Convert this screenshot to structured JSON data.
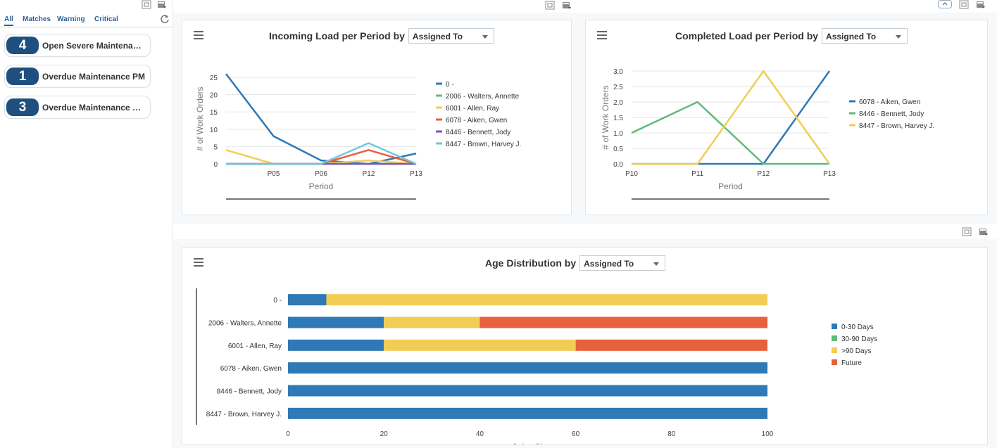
{
  "sidebar": {
    "tabs": [
      "All",
      "Matches",
      "Warning",
      "Critical"
    ],
    "watchlists": [
      {
        "count": "4",
        "label": "Open Severe Maintenance"
      },
      {
        "count": "1",
        "label": "Overdue Maintenance PM"
      },
      {
        "count": "3",
        "label": "Overdue Maintenance WO"
      }
    ]
  },
  "incoming": {
    "title": "Incoming Load per Period by",
    "select_value": "Assigned To"
  },
  "completed": {
    "title": "Completed Load per Period by",
    "select_value": "Assigned To"
  },
  "age": {
    "title": "Age Distribution by",
    "select_value": "Assigned To"
  },
  "chart_data": [
    {
      "type": "line",
      "title": "Incoming Load per Period by Assigned To",
      "xlabel": "Period",
      "ylabel": "# of Work Orders",
      "categories": [
        "",
        "P05",
        "P06",
        "P12",
        "P13"
      ],
      "yticks": [
        0,
        5,
        10,
        15,
        20,
        25
      ],
      "ylim": [
        0,
        26
      ],
      "series": [
        {
          "name": "0 -",
          "color": "#2e79b6",
          "values": [
            26,
            8,
            1,
            0,
            3
          ]
        },
        {
          "name": "2006 - Walters, Annette",
          "color": "#5dbb7a",
          "values": [
            0,
            0,
            0,
            0,
            0
          ]
        },
        {
          "name": "6001 - Allen, Ray",
          "color": "#f2cd55",
          "values": [
            4,
            0,
            0,
            1,
            0
          ]
        },
        {
          "name": "6078 - Aiken, Gwen",
          "color": "#e8603c",
          "values": [
            0,
            0,
            0,
            4,
            0
          ]
        },
        {
          "name": "8446 - Bennett, Jody",
          "color": "#7a55c4",
          "values": [
            0,
            0,
            0,
            0,
            0
          ]
        },
        {
          "name": "8447 - Brown, Harvey J.",
          "color": "#6fc7dd",
          "values": [
            0,
            0,
            0,
            6,
            0
          ]
        }
      ]
    },
    {
      "type": "line",
      "title": "Completed Load per Period by Assigned To",
      "xlabel": "Period",
      "ylabel": "# of Work Orders",
      "categories": [
        "P10",
        "P11",
        "P12",
        "P13"
      ],
      "yticks": [
        "0.0",
        "0.5",
        "1.0",
        "1.5",
        "2.0",
        "2.5",
        "3.0"
      ],
      "ylim": [
        0,
        3
      ],
      "series": [
        {
          "name": "6078 - Aiken, Gwen",
          "color": "#2e79b6",
          "values": [
            0,
            0,
            0,
            3
          ]
        },
        {
          "name": "8446 - Bennett, Jody",
          "color": "#5dbb7a",
          "values": [
            1,
            2,
            0,
            0
          ]
        },
        {
          "name": "8447 - Brown, Harvey J.",
          "color": "#f2cd55",
          "values": [
            0,
            0,
            3,
            0
          ]
        }
      ]
    },
    {
      "type": "bar",
      "orientation": "horizontal",
      "stacked": true,
      "title": "Age Distribution by Assigned To",
      "xlabel": "Aging %",
      "xticks": [
        0,
        20,
        40,
        60,
        80,
        100
      ],
      "xlim": [
        0,
        100
      ],
      "categories": [
        "0 -",
        "2006 - Walters, Annette",
        "6001 - Allen, Ray",
        "6078 - Aiken, Gwen",
        "8446 - Bennett, Jody",
        "8447 - Brown, Harvey J."
      ],
      "series": [
        {
          "name": "0-30 Days",
          "color": "#2e79b6",
          "values": [
            8,
            20,
            20,
            100,
            100,
            100
          ]
        },
        {
          "name": "30-90 Days",
          "color": "#5dbb7a",
          "values": [
            0,
            0,
            0,
            0,
            0,
            0
          ]
        },
        {
          "name": ">90 Days",
          "color": "#f2cd55",
          "values": [
            92,
            20,
            40,
            0,
            0,
            0
          ]
        },
        {
          "name": "Future",
          "color": "#e8603c",
          "values": [
            0,
            60,
            40,
            0,
            0,
            0
          ]
        }
      ]
    }
  ]
}
